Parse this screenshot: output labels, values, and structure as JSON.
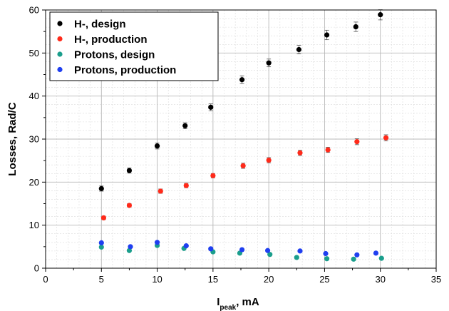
{
  "chart_data": {
    "type": "scatter",
    "title": "",
    "xlabel_main": "I",
    "xlabel_sub": "peak",
    "xlabel_rest": ", mA",
    "ylabel": "Losses, Rad/C",
    "xlim": [
      0,
      35
    ],
    "ylim": [
      0,
      60
    ],
    "xticks": [
      0,
      5,
      10,
      15,
      20,
      25,
      30,
      35
    ],
    "xtick_labels": [
      "0",
      "5",
      "10",
      "15",
      "20",
      "25",
      "30",
      "35"
    ],
    "yticks": [
      0,
      10,
      20,
      30,
      40,
      50,
      60
    ],
    "ytick_labels": [
      "0",
      "10",
      "20",
      "30",
      "40",
      "50",
      "60"
    ],
    "grid": true,
    "minor_grid": true,
    "legend_position": "top-left",
    "series": [
      {
        "name": "H-, design",
        "color": "#000000",
        "x": [
          5.0,
          7.5,
          10.0,
          12.5,
          14.8,
          17.6,
          20.0,
          22.7,
          25.2,
          27.8,
          30.0
        ],
        "y": [
          18.5,
          22.7,
          28.4,
          33.1,
          37.4,
          43.8,
          47.7,
          50.8,
          54.2,
          56.1,
          58.9
        ],
        "err": [
          0.6,
          0.6,
          0.7,
          0.7,
          0.8,
          0.9,
          0.9,
          1.0,
          1.1,
          1.1,
          1.2
        ]
      },
      {
        "name": "H-, production",
        "color": "#ff2a1a",
        "x": [
          5.2,
          7.5,
          10.3,
          12.6,
          15.0,
          17.7,
          20.0,
          22.8,
          25.3,
          27.9,
          30.5
        ],
        "y": [
          11.7,
          14.6,
          17.9,
          19.2,
          21.5,
          23.8,
          25.1,
          26.8,
          27.5,
          29.4,
          30.3
        ],
        "err": [
          0.4,
          0.4,
          0.5,
          0.5,
          0.5,
          0.6,
          0.6,
          0.6,
          0.6,
          0.7,
          0.7
        ]
      },
      {
        "name": "Protons, design",
        "color": "#1a9e8c",
        "x": [
          5.0,
          7.5,
          10.0,
          12.4,
          15.0,
          17.4,
          20.1,
          22.5,
          25.2,
          27.6,
          30.1
        ],
        "y": [
          4.9,
          4.1,
          5.3,
          4.6,
          3.8,
          3.5,
          3.2,
          2.5,
          2.2,
          2.1,
          2.3
        ],
        "err": [
          0.2,
          0.2,
          0.2,
          0.2,
          0.2,
          0.2,
          0.2,
          0.2,
          0.2,
          0.2,
          0.2
        ]
      },
      {
        "name": "Protons, production",
        "color": "#1f3ff0",
        "x": [
          5.0,
          7.6,
          10.0,
          12.6,
          14.8,
          17.6,
          19.9,
          22.8,
          25.1,
          27.9,
          29.6
        ],
        "y": [
          5.9,
          5.0,
          6.0,
          5.2,
          4.5,
          4.3,
          4.1,
          4.0,
          3.4,
          3.1,
          3.5
        ],
        "err": [
          0.2,
          0.2,
          0.2,
          0.2,
          0.2,
          0.2,
          0.2,
          0.2,
          0.2,
          0.2,
          0.2
        ]
      }
    ]
  }
}
